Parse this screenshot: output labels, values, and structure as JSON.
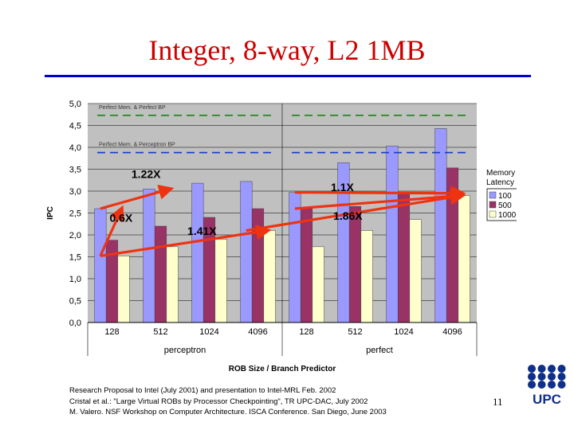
{
  "slide": {
    "title": "Integer, 8-way, L2 1MB",
    "footer_lines": [
      "Research Proposal to Intel (July 2001) and presentation to Intel-MRL Feb. 2002",
      "Cristal et al.: \"Large Virtual ROBs by Processor Checkpointing\", TR UPC-DAC, July 2002",
      "M. Valero. NSF Workshop on Computer Architecture. ISCA Conference. San Diego, June 2003"
    ],
    "page_number": "11",
    "logo_text": "UPC"
  },
  "chart_data": {
    "type": "bar",
    "ylabel": "IPC",
    "xlabel": "ROB Size / Branch Predictor",
    "ylim": [
      0,
      5
    ],
    "yticks": [
      "0,0",
      "0,5",
      "1,0",
      "1,5",
      "2,0",
      "2,5",
      "3,0",
      "3,5",
      "4,0",
      "4,5",
      "5,0"
    ],
    "grid": true,
    "categories": [
      "128",
      "512",
      "1024",
      "4096",
      "128",
      "512",
      "1024",
      "4096"
    ],
    "groups": [
      {
        "label": "perceptron",
        "start": 0,
        "end": 3
      },
      {
        "label": "perfect",
        "start": 4,
        "end": 7
      }
    ],
    "legend": {
      "title_line1": "Memory",
      "title_line2": "Latency",
      "placement": "right"
    },
    "series": [
      {
        "name": "100",
        "color": "#9999ff",
        "values": [
          2.6,
          3.05,
          3.18,
          3.22,
          2.97,
          3.65,
          4.03,
          4.43
        ]
      },
      {
        "name": "500",
        "color": "#993366",
        "values": [
          1.88,
          2.2,
          2.4,
          2.6,
          2.6,
          2.65,
          2.93,
          3.53
        ]
      },
      {
        "name": "1000",
        "color": "#ffffcc",
        "values": [
          1.52,
          1.73,
          1.9,
          2.1,
          1.73,
          2.1,
          2.35,
          2.9
        ]
      }
    ],
    "reference_lines": [
      {
        "label": "Perfect Mem. & Perfect BP",
        "value": 4.73,
        "color": "#228b22",
        "dash": true
      },
      {
        "label": "Perfect Mem. & Perceptron BP",
        "value": 3.88,
        "color": "#1a3fcc",
        "dash": true
      }
    ],
    "annotations": [
      {
        "text": "1.22X",
        "x": 0.4,
        "y": 3.3
      },
      {
        "text": "0.6X",
        "x": -0.05,
        "y": 2.3
      },
      {
        "text": "1.41X",
        "x": 1.55,
        "y": 2.0
      },
      {
        "text": "1.1X",
        "x": 4.5,
        "y": 3.0
      },
      {
        "text": "1.86X",
        "x": 4.55,
        "y": 2.35
      }
    ],
    "arrows": [
      {
        "from": [
          0,
          1.52
        ],
        "to": [
          0,
          2.6
        ]
      },
      {
        "from": [
          0,
          2.6
        ],
        "to": [
          1,
          3.05
        ]
      },
      {
        "from": [
          0,
          1.52
        ],
        "to": [
          3,
          2.1
        ]
      },
      {
        "from": [
          3,
          2.1
        ],
        "to": [
          7,
          2.9
        ]
      },
      {
        "from": [
          4,
          2.97
        ],
        "to": [
          7,
          2.95
        ]
      },
      {
        "from": [
          4,
          2.6
        ],
        "to": [
          7,
          2.9
        ]
      }
    ],
    "arrow_color": "#ee3311"
  }
}
